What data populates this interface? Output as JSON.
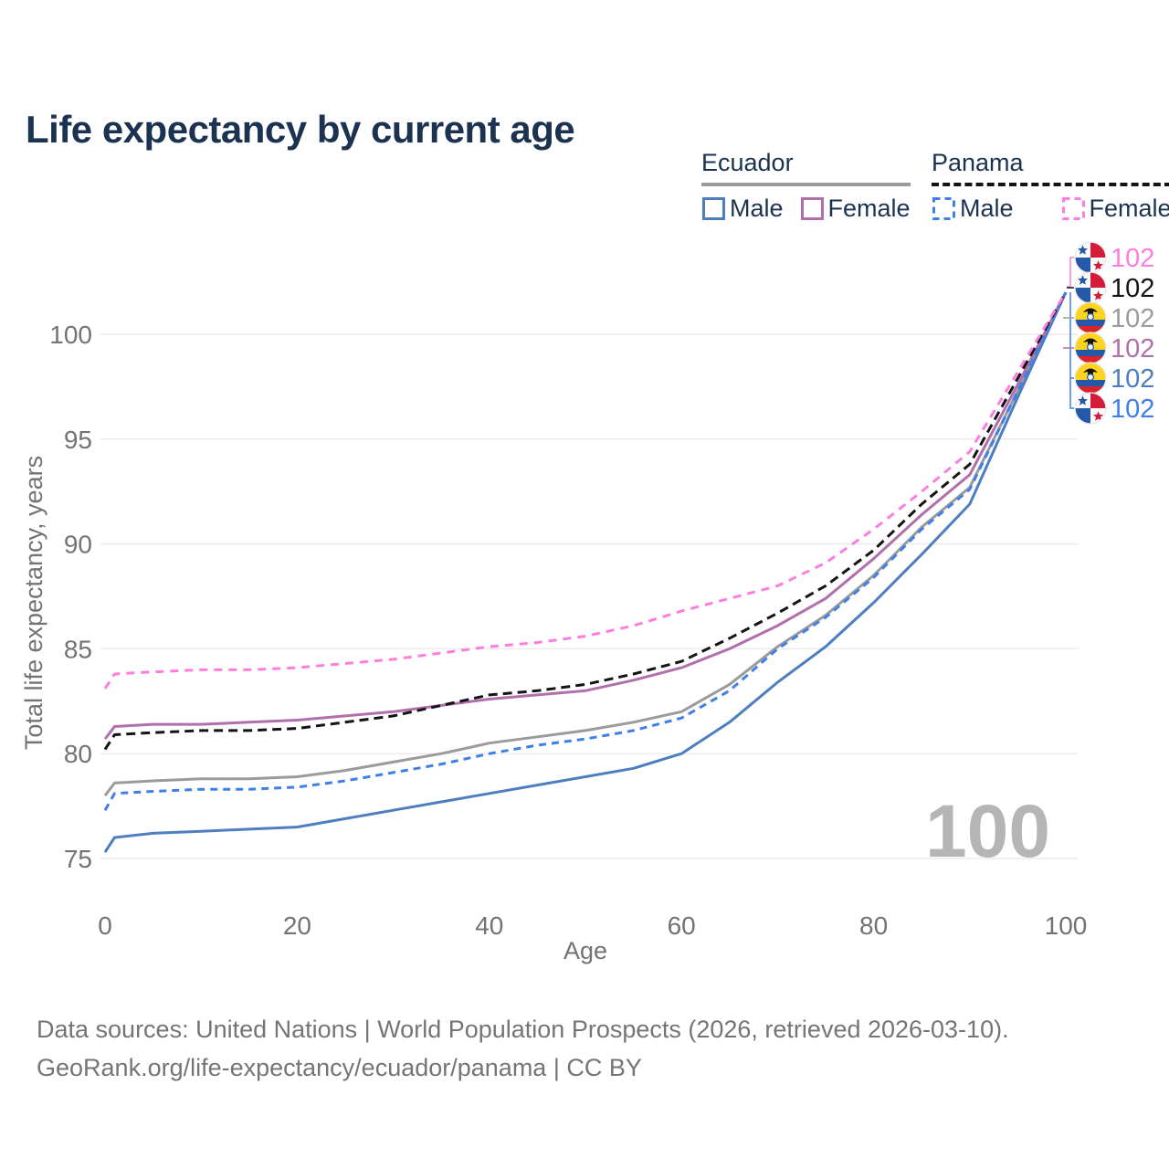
{
  "page_title": "Life expectancy by current age",
  "legend": {
    "groups": [
      {
        "country": "Ecuador",
        "line_style": "solid",
        "key_color": "#9b9b9b",
        "items": [
          {
            "label": "Male",
            "color": "#4d7ebf",
            "dashed": false
          },
          {
            "label": "Female",
            "color": "#b16fab",
            "dashed": false
          }
        ]
      },
      {
        "country": "Panama",
        "line_style": "dashed",
        "key_color": "#141414",
        "items": [
          {
            "label": "Male",
            "color": "#3f7fe8",
            "dashed": true
          },
          {
            "label": "Female",
            "color": "#fc7ee0",
            "dashed": true
          }
        ]
      }
    ]
  },
  "watermark_age": "100",
  "chart_data": {
    "type": "line",
    "title": "Life expectancy by current age",
    "xlabel": "Age",
    "ylabel": "Total life expectancy, years",
    "xticks": [
      0,
      20,
      40,
      60,
      80,
      100
    ],
    "yticks": [
      75,
      80,
      85,
      90,
      95,
      100
    ],
    "xlim": [
      0,
      100
    ],
    "ylim": [
      73.8,
      103.8
    ],
    "grid": true,
    "legend_position": "top-right",
    "ages": [
      0,
      1,
      5,
      10,
      15,
      20,
      25,
      30,
      35,
      40,
      45,
      50,
      55,
      60,
      65,
      70,
      75,
      80,
      85,
      90,
      95,
      100
    ],
    "series": [
      {
        "name": "Panama Female",
        "country": "Panama",
        "sex": "Female",
        "color": "#fc7ee0",
        "dash": [
          9,
          7
        ],
        "flag": "panama",
        "end_label": "102",
        "values": [
          83.1,
          83.8,
          83.9,
          84.0,
          84.0,
          84.1,
          84.3,
          84.5,
          84.8,
          85.1,
          85.3,
          85.6,
          86.1,
          86.8,
          87.4,
          88.0,
          89.1,
          90.7,
          92.5,
          94.4,
          98.2,
          102
        ]
      },
      {
        "name": "Panama Both sexes",
        "country": "Panama",
        "sex": "Both",
        "color": "#141414",
        "dash": [
          10,
          6
        ],
        "flag": "panama",
        "end_label": "102",
        "values": [
          80.2,
          80.9,
          81.0,
          81.1,
          81.1,
          81.2,
          81.5,
          81.8,
          82.3,
          82.8,
          83.0,
          83.3,
          83.8,
          84.4,
          85.5,
          86.7,
          88.0,
          89.7,
          91.9,
          93.8,
          97.9,
          102
        ]
      },
      {
        "name": "Ecuador Both sexes",
        "country": "Ecuador",
        "sex": "Both",
        "color": "#9b9b9b",
        "dash": null,
        "flag": "ecuador",
        "end_label": "102",
        "values": [
          78.0,
          78.6,
          78.7,
          78.8,
          78.8,
          78.9,
          79.2,
          79.6,
          80.0,
          80.5,
          80.8,
          81.1,
          81.5,
          82.0,
          83.3,
          85.1,
          86.6,
          88.5,
          90.8,
          92.7,
          97.3,
          102
        ]
      },
      {
        "name": "Ecuador Female",
        "country": "Ecuador",
        "sex": "Female",
        "color": "#b16fab",
        "dash": null,
        "flag": "ecuador",
        "end_label": "102",
        "values": [
          80.7,
          81.3,
          81.4,
          81.4,
          81.5,
          81.6,
          81.8,
          82.0,
          82.3,
          82.6,
          82.8,
          83.0,
          83.5,
          84.1,
          85.0,
          86.1,
          87.4,
          89.3,
          91.4,
          93.3,
          97.6,
          102
        ]
      },
      {
        "name": "Ecuador Male",
        "country": "Ecuador",
        "sex": "Male",
        "color": "#4d7ebf",
        "dash": null,
        "flag": "ecuador",
        "end_label": "102",
        "values": [
          75.3,
          76.0,
          76.2,
          76.3,
          76.4,
          76.5,
          76.9,
          77.3,
          77.7,
          78.1,
          78.5,
          78.9,
          79.3,
          80.0,
          81.5,
          83.4,
          85.1,
          87.2,
          89.5,
          91.9,
          97.0,
          102
        ]
      },
      {
        "name": "Panama Male",
        "country": "Panama",
        "sex": "Male",
        "color": "#3f7fe8",
        "dash": [
          8,
          6
        ],
        "flag": "panama",
        "end_label": "102",
        "values": [
          77.3,
          78.1,
          78.2,
          78.3,
          78.3,
          78.4,
          78.7,
          79.1,
          79.5,
          80.0,
          80.4,
          80.7,
          81.1,
          81.7,
          83.0,
          85.0,
          86.5,
          88.4,
          90.7,
          92.6,
          97.3,
          102
        ]
      }
    ]
  },
  "colors": {
    "title_text": "#1b3350",
    "axis_text": "#737373",
    "gridline": "#ececec",
    "watermark": "#b5b5b5",
    "flag_panama_red": "#d21c39",
    "flag_panama_blue": "#2458a8",
    "flag_ecuador_yellow": "#ffd41f",
    "flag_ecuador_blue": "#2458a8",
    "flag_ecuador_red": "#d8232a"
  },
  "footer": {
    "line1": "Data sources: United Nations | World Population Prospects (2026, retrieved 2026-03-10).",
    "line2": "GeoRank.org/life-expectancy/ecuador/panama | CC BY"
  }
}
